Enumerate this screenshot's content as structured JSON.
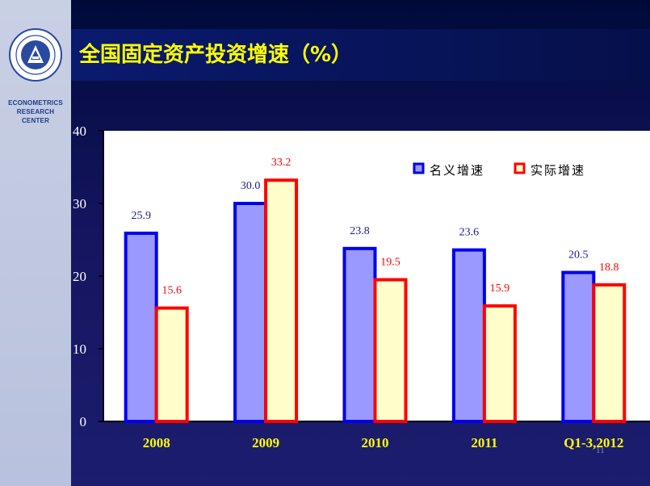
{
  "sidebar": {
    "org_lines": [
      "ECONOMETRICS",
      "RESEARCH",
      "CENTER"
    ]
  },
  "header": {
    "title": "全国固定资产投资增速（%）"
  },
  "page_number": "11",
  "colors": {
    "nominal_fill": "#9999ff",
    "nominal_stroke": "#0000ee",
    "real_fill": "#ffffcc",
    "real_stroke": "#ff0000",
    "title": "#ffff00",
    "tick_labels": "#ffffff",
    "category_labels": "#ffff00",
    "nominal_labels": "#1a1a8c",
    "real_labels": "#ff0000"
  },
  "chart_data": {
    "type": "bar",
    "title": "全国固定资产投资增速（%）",
    "categories": [
      "2008",
      "2009",
      "2010",
      "2011",
      "Q1-3,2012"
    ],
    "series": [
      {
        "name": "名义增速",
        "values": [
          25.9,
          30.0,
          23.8,
          23.6,
          20.5
        ],
        "labels": [
          "25.9",
          "30.0",
          "23.8",
          "23.6",
          "20.5"
        ]
      },
      {
        "name": "实际增速",
        "values": [
          15.6,
          33.2,
          19.5,
          15.9,
          18.8
        ],
        "labels": [
          "15.6",
          "33.2",
          "19.5",
          "15.9",
          "18.8"
        ]
      }
    ],
    "yticks": [
      "0",
      "10",
      "20",
      "30",
      "40"
    ],
    "ylim": [
      0,
      40
    ],
    "grid": false,
    "legend": "top-right"
  }
}
